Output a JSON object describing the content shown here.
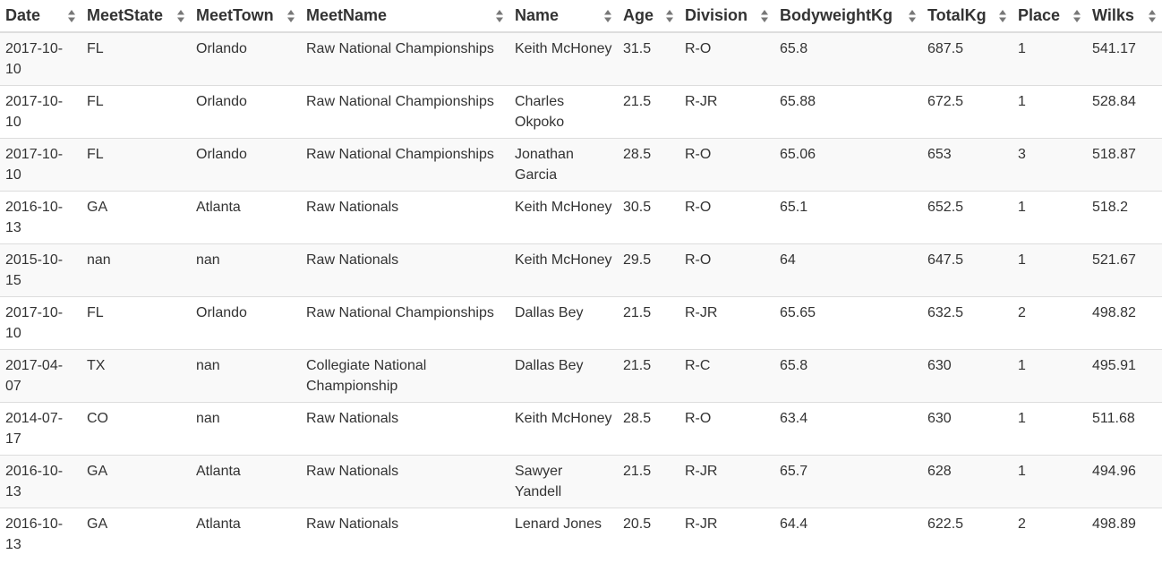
{
  "table": {
    "columns": [
      "Date",
      "MeetState",
      "MeetTown",
      "MeetName",
      "Name",
      "Age",
      "Division",
      "BodyweightKg",
      "TotalKg",
      "Place",
      "Wilks"
    ],
    "rows": [
      [
        "2017-10-10",
        "FL",
        "Orlando",
        "Raw National Championships",
        "Keith McHoney",
        "31.5",
        "R-O",
        "65.8",
        "687.5",
        "1",
        "541.17"
      ],
      [
        "2017-10-10",
        "FL",
        "Orlando",
        "Raw National Championships",
        "Charles Okpoko",
        "21.5",
        "R-JR",
        "65.88",
        "672.5",
        "1",
        "528.84"
      ],
      [
        "2017-10-10",
        "FL",
        "Orlando",
        "Raw National Championships",
        "Jonathan Garcia",
        "28.5",
        "R-O",
        "65.06",
        "653",
        "3",
        "518.87"
      ],
      [
        "2016-10-13",
        "GA",
        "Atlanta",
        "Raw Nationals",
        "Keith McHoney",
        "30.5",
        "R-O",
        "65.1",
        "652.5",
        "1",
        "518.2"
      ],
      [
        "2015-10-15",
        "nan",
        "nan",
        "Raw Nationals",
        "Keith McHoney",
        "29.5",
        "R-O",
        "64",
        "647.5",
        "1",
        "521.67"
      ],
      [
        "2017-10-10",
        "FL",
        "Orlando",
        "Raw National Championships",
        "Dallas Bey",
        "21.5",
        "R-JR",
        "65.65",
        "632.5",
        "2",
        "498.82"
      ],
      [
        "2017-04-07",
        "TX",
        "nan",
        "Collegiate National Championship",
        "Dallas Bey",
        "21.5",
        "R-C",
        "65.8",
        "630",
        "1",
        "495.91"
      ],
      [
        "2014-07-17",
        "CO",
        "nan",
        "Raw Nationals",
        "Keith McHoney",
        "28.5",
        "R-O",
        "63.4",
        "630",
        "1",
        "511.68"
      ],
      [
        "2016-10-13",
        "GA",
        "Atlanta",
        "Raw Nationals",
        "Sawyer Yandell",
        "21.5",
        "R-JR",
        "65.7",
        "628",
        "1",
        "494.96"
      ],
      [
        "2016-10-13",
        "GA",
        "Atlanta",
        "Raw Nationals",
        "Lenard Jones",
        "20.5",
        "R-JR",
        "64.4",
        "622.5",
        "2",
        "498.89"
      ]
    ]
  },
  "icons": {
    "sort": "sort-up-down-icon"
  },
  "colors": {
    "header_border": "#dddddd",
    "row_stripe": "#f9f9f9",
    "text": "#333333",
    "sort_icon": "#777777"
  }
}
